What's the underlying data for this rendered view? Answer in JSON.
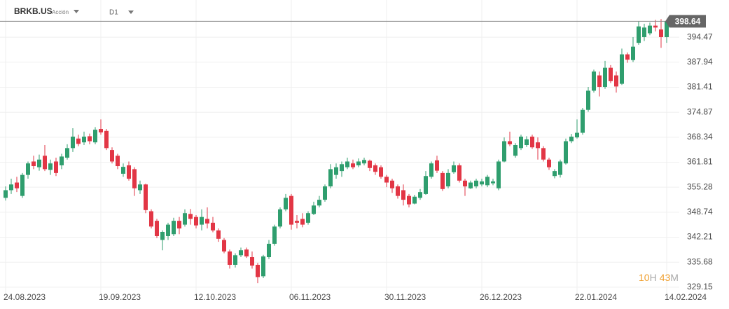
{
  "chart_data": {
    "type": "candlestick",
    "symbol": "BRKB.US",
    "asset_type": "Acción",
    "timeframe": "D1",
    "countdown": [
      "10",
      "H",
      "43",
      "M"
    ],
    "categories": [
      "24.08.2023",
      null,
      null,
      null,
      null,
      null,
      null,
      null,
      null,
      null,
      null,
      null,
      null,
      null,
      null,
      null,
      null,
      "19.09.2023",
      null,
      null,
      null,
      null,
      null,
      null,
      null,
      null,
      null,
      null,
      null,
      null,
      null,
      null,
      null,
      null,
      "12.10.2023",
      null,
      null,
      null,
      null,
      null,
      null,
      null,
      null,
      null,
      null,
      null,
      null,
      null,
      null,
      null,
      null,
      "06.11.2023",
      null,
      null,
      null,
      null,
      null,
      null,
      null,
      null,
      null,
      null,
      null,
      null,
      null,
      null,
      null,
      null,
      "30.11.2023",
      null,
      null,
      null,
      null,
      null,
      null,
      null,
      null,
      null,
      null,
      null,
      null,
      null,
      null,
      null,
      null,
      "26.12.2023",
      null,
      null,
      null,
      null,
      null,
      null,
      null,
      null,
      null,
      null,
      null,
      null,
      null,
      null,
      null,
      null,
      "22.01.2024",
      null,
      null,
      null,
      null,
      null,
      null,
      null,
      null,
      null,
      null,
      null,
      null,
      null,
      null,
      null,
      "14.02.2024"
    ],
    "open": [
      352.5,
      354.5,
      356.5,
      353,
      358.5,
      362,
      360.5,
      363.5,
      359.8,
      362,
      361,
      363,
      365.5,
      368,
      367,
      368.6,
      367,
      370.5,
      370,
      365,
      363.5,
      358.8,
      361,
      360,
      354.5,
      356,
      349,
      346.5,
      341.5,
      342.5,
      343,
      346.5,
      345.5,
      348.3,
      347.5,
      345.5,
      347,
      346,
      344,
      341.5,
      338.5,
      335,
      337.5,
      339,
      337,
      335,
      332,
      337,
      340.5,
      345,
      349.5,
      353,
      346.5,
      347,
      346,
      348.3,
      350.5,
      352,
      355.5,
      358.5,
      359.5,
      360.5,
      361.5,
      361,
      361.5,
      362.2,
      361,
      360.5,
      358,
      357,
      355.5,
      354.5,
      353,
      351,
      352.5,
      353.5,
      358,
      362.3,
      359,
      355.5,
      359.2,
      361,
      357,
      355,
      355.5,
      356,
      355.8,
      356.3,
      355,
      362,
      367.3,
      363.5,
      365.5,
      366.3,
      368.5,
      367,
      365.5,
      362.5,
      358.2,
      358.5,
      361.5,
      367.3,
      368.3,
      369.5,
      375.5,
      380.5,
      384.5,
      381.5,
      386.5,
      384.5,
      382.3,
      390,
      388.5,
      393,
      394.5,
      395.5,
      397.5,
      396.5,
      394.5
    ],
    "high": [
      355.5,
      357.5,
      358,
      359,
      362,
      363.5,
      363.8,
      366.3,
      362.5,
      363,
      364,
      366.5,
      370.7,
      369,
      369.8,
      369.3,
      371,
      373,
      370.5,
      365.7,
      364,
      361.5,
      362,
      360.5,
      357,
      356.2,
      349.5,
      347,
      344,
      346,
      347.3,
      347.5,
      349.5,
      349.6,
      348,
      349.5,
      350,
      347.5,
      344.5,
      342,
      339,
      338,
      339.5,
      339.5,
      338.5,
      335.5,
      337.6,
      341.5,
      345.5,
      350,
      353.5,
      353.5,
      348,
      348.5,
      349,
      351.5,
      353,
      356,
      361.3,
      361.5,
      362,
      363,
      362.5,
      362.8,
      363,
      362.5,
      361.5,
      361,
      358.5,
      357.5,
      356,
      356,
      353.5,
      353.3,
      354.8,
      359.5,
      362,
      363.5,
      359.5,
      360,
      362,
      361.5,
      357.5,
      357,
      357.5,
      357.5,
      358.5,
      357.5,
      362.5,
      368.3,
      369.8,
      366.8,
      369,
      368.6,
      369,
      368.3,
      366,
      363,
      360,
      362.5,
      368,
      369.2,
      373,
      376,
      381.5,
      386,
      385.5,
      388.3,
      387.2,
      385.5,
      391.5,
      390.5,
      394.5,
      398.7,
      398,
      398.3,
      399,
      399.2,
      399
    ],
    "low": [
      351.8,
      353.5,
      354,
      352.5,
      357.5,
      360,
      359.6,
      359.5,
      358.5,
      358.2,
      360,
      362.5,
      364.5,
      366,
      366.3,
      366.5,
      366.5,
      369,
      365,
      361.5,
      360,
      358,
      357,
      353,
      353.5,
      348.5,
      344.5,
      342,
      338.8,
      341.5,
      342.5,
      343,
      345,
      345.5,
      344.5,
      344,
      344.5,
      343.5,
      341,
      338,
      334,
      334.3,
      337,
      336.8,
      334,
      330.2,
      331.5,
      336.5,
      340,
      344.5,
      349,
      344.2,
      344.5,
      344.8,
      345.5,
      348,
      350,
      351.5,
      355,
      357.5,
      358,
      360,
      360,
      360.5,
      361,
      359.5,
      358.5,
      357.5,
      355.3,
      353.8,
      352.3,
      350.5,
      350,
      350.8,
      352,
      353.3,
      357.5,
      359,
      354.3,
      355,
      358.8,
      356.5,
      353,
      354.8,
      355,
      355.5,
      355.3,
      355.8,
      354.5,
      361.8,
      366,
      363,
      365,
      365.8,
      365.3,
      362.5,
      362,
      359.8,
      357.6,
      357.8,
      361.2,
      366.8,
      368,
      369,
      375,
      380,
      379,
      381,
      382.5,
      380,
      382,
      387.8,
      388,
      392.5,
      393.5,
      395,
      396,
      391.7,
      393
    ],
    "close": [
      354.5,
      356,
      355,
      358.5,
      361.5,
      360.8,
      362.5,
      360,
      361.5,
      359,
      363.3,
      365.5,
      368.5,
      366.6,
      368.5,
      367.3,
      370.3,
      369.6,
      365.5,
      362,
      360.8,
      360.6,
      357.5,
      355,
      356,
      349.3,
      345,
      342.5,
      343.6,
      345.5,
      346.5,
      344.5,
      348.5,
      347,
      345.3,
      347.5,
      345.8,
      344,
      341.8,
      338.5,
      335,
      337.5,
      338.8,
      337.2,
      334.8,
      331.8,
      337.2,
      340.5,
      345,
      349.5,
      352.5,
      345.5,
      346,
      345.5,
      348.5,
      350.5,
      352,
      355.5,
      360,
      360.5,
      361.3,
      362,
      360.5,
      362,
      362.4,
      360.3,
      359.3,
      358,
      356.5,
      355,
      353,
      352,
      350.8,
      352.8,
      354,
      358.2,
      361.5,
      359.6,
      354.8,
      359,
      361,
      357,
      355.5,
      356.5,
      357,
      356.8,
      358,
      356.8,
      362,
      367.3,
      366.5,
      366.3,
      368.5,
      367.8,
      365.7,
      365.5,
      362.5,
      360.5,
      359.5,
      362,
      367.3,
      368.5,
      369.5,
      375.5,
      380.5,
      385.5,
      381.5,
      386.5,
      383,
      381.6,
      390,
      388.6,
      392,
      397.3,
      397,
      397.5,
      397,
      394.5,
      398.64
    ],
    "up_color": "#2f9e6e",
    "down_color": "#e23645",
    "last_price": 398.64,
    "ylim": [
      327.3,
      404.2
    ],
    "yticks": [
      329.15,
      335.68,
      342.21,
      348.74,
      355.28,
      361.81,
      368.34,
      374.87,
      381.41,
      387.94,
      394.47
    ],
    "grid": true
  }
}
